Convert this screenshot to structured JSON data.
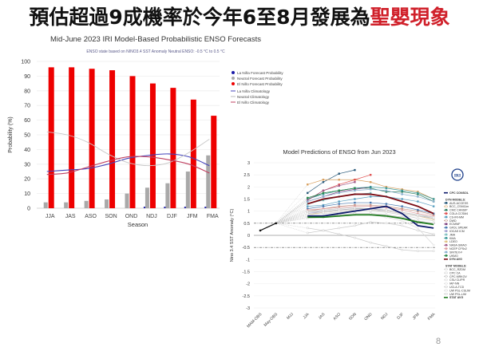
{
  "slide": {
    "title_main": "預估超過9成機率於今年6至8月發展為",
    "title_highlight": "聖嬰現象",
    "highlight_color": "#d0202a",
    "page_number": "8"
  },
  "chart_data": [
    {
      "type": "bar",
      "title": "Mid-June 2023 IRI Model-Based Probabilistic ENSO Forecasts",
      "subtitle": "ENSO state based on NINO3.4 SST Anomaly Neutral ENSO: -0.5 °C to 0.5 °C",
      "xlabel": "Season",
      "ylabel": "Probability (%)",
      "ylim": [
        0,
        100
      ],
      "yticks": [
        0,
        10,
        20,
        30,
        40,
        50,
        60,
        70,
        80,
        90,
        100
      ],
      "categories": [
        "JJA",
        "JAS",
        "ASO",
        "SON",
        "OND",
        "NDJ",
        "DJF",
        "JFM",
        "FMA"
      ],
      "series": [
        {
          "name": "La Niña Forecast Probability",
          "kind": "bar",
          "color": "#1a1aa8",
          "values": [
            0,
            0,
            0,
            0,
            0,
            1,
            1,
            1,
            1
          ]
        },
        {
          "name": "Neutral Forecast Probability",
          "kind": "bar",
          "color": "#a9a9a9",
          "values": [
            4,
            4,
            5,
            6,
            10,
            14,
            17,
            25,
            36
          ]
        },
        {
          "name": "El Niño Forecast Probability",
          "kind": "bar",
          "color": "#ee0000",
          "values": [
            96,
            96,
            95,
            94,
            90,
            85,
            82,
            74,
            63
          ]
        },
        {
          "name": "La Niña Climatology",
          "kind": "line",
          "color": "#4444bb",
          "values": [
            25,
            26,
            27,
            30,
            34,
            36,
            37,
            35,
            29
          ]
        },
        {
          "name": "Neutral Climatology",
          "kind": "line",
          "color": "#c8c8c8",
          "values": [
            52,
            50,
            45,
            37,
            31,
            29,
            31,
            38,
            47
          ]
        },
        {
          "name": "El Niño Climatology",
          "kind": "line",
          "color": "#c04060",
          "values": [
            23,
            24,
            28,
            32,
            35,
            35,
            33,
            30,
            24
          ]
        }
      ],
      "legend": {
        "position": "right"
      },
      "grid": true
    },
    {
      "type": "line",
      "title": "Model Predictions of ENSO from Jun 2023",
      "xlabel": "",
      "ylabel": "Nino 3.4 SST Anomaly (°C)",
      "ylim": [
        -3,
        3
      ],
      "yticks": [
        -3,
        -2.5,
        -2,
        -1.5,
        -1,
        -0.5,
        0,
        0.5,
        1,
        1.5,
        2,
        2.5,
        3
      ],
      "categories": [
        "MAM-OBS",
        "May-OBS",
        "MJJ",
        "JJA",
        "JAS",
        "ASO",
        "SON",
        "OND",
        "NDJ",
        "DJF",
        "JFM",
        "FMA"
      ],
      "thresholds": [
        0.5,
        -0.5
      ],
      "observed": {
        "name": "Observed",
        "values": [
          0.2,
          0.5
        ]
      },
      "series": [
        {
          "name": "CPC CONSOL",
          "color": "#0d1a6b",
          "values": [
            null,
            null,
            null,
            0.8,
            0.8,
            0.9,
            1.0,
            1.1,
            1.2,
            0.9,
            0.4,
            0.3
          ]
        },
        {
          "name": "DYN AVG",
          "color": "#7a0a12",
          "values": [
            null,
            null,
            null,
            1.3,
            1.5,
            1.6,
            1.7,
            1.7,
            1.6,
            1.4,
            1.2,
            0.9
          ]
        },
        {
          "name": "STAT AVG",
          "color": "#1e7a1e",
          "values": [
            null,
            null,
            null,
            0.75,
            0.75,
            0.8,
            0.85,
            0.85,
            0.8,
            0.7,
            0.55,
            0.45
          ]
        },
        {
          "name": "AUS-ACCESS",
          "color": "#2a5a7a",
          "values": [
            null,
            null,
            null,
            1.75,
            2.2,
            2.55,
            2.7,
            null,
            null,
            null,
            null,
            null
          ]
        },
        {
          "name": "BCC_CSM11m",
          "color": "#d8a060",
          "values": [
            null,
            null,
            null,
            2.1,
            2.3,
            2.3,
            2.3,
            2.2,
            2.0,
            1.9,
            1.8,
            1.5
          ]
        },
        {
          "name": "CMC CANSIP",
          "color": "#2a7a5a",
          "values": [
            null,
            null,
            null,
            1.5,
            1.75,
            1.85,
            1.95,
            1.95,
            1.8,
            1.8,
            1.7,
            1.4
          ]
        },
        {
          "name": "COLA CCSM4",
          "color": "#e05050",
          "values": [
            null,
            null,
            null,
            1.45,
            1.85,
            2.1,
            2.3,
            2.5,
            null,
            null,
            null,
            null
          ]
        },
        {
          "name": "CS-IRI-MM",
          "color": "#5aa0c0",
          "values": [
            null,
            null,
            null,
            1.2,
            1.25,
            1.4,
            1.5,
            1.6,
            1.6,
            1.5,
            1.4,
            1.2
          ]
        },
        {
          "name": "DWD",
          "color": "#c09080",
          "values": [
            null,
            null,
            null,
            1.0,
            1.1,
            1.2,
            1.25,
            1.25,
            1.2,
            1.1,
            1.0,
            0.85
          ]
        },
        {
          "name": "ECMWF",
          "color": "#7a3a7a",
          "values": [
            null,
            null,
            null,
            1.4,
            1.6,
            1.8,
            1.9,
            2.0,
            null,
            null,
            null,
            null
          ]
        },
        {
          "name": "GFDL SPEAR",
          "color": "#4a7ab0",
          "values": [
            null,
            null,
            null,
            1.1,
            1.2,
            1.3,
            1.35,
            1.35,
            1.3,
            1.2,
            1.05,
            0.9
          ]
        },
        {
          "name": "IOCAS ICM",
          "color": "#a0a0d0",
          "values": [
            null,
            null,
            null,
            0.9,
            1.0,
            1.05,
            1.1,
            1.1,
            1.0,
            0.9,
            0.8,
            0.7
          ]
        },
        {
          "name": "JMA",
          "color": "#80c0c0",
          "values": [
            null,
            null,
            null,
            1.3,
            1.45,
            1.6,
            1.7,
            1.75,
            null,
            null,
            null,
            null
          ]
        },
        {
          "name": "KMA",
          "color": "#3a9a9a",
          "values": [
            null,
            null,
            null,
            1.5,
            1.7,
            1.85,
            1.95,
            2.0,
            1.95,
            1.85,
            1.75,
            1.5
          ]
        },
        {
          "name": "LDEO",
          "color": "#e0c080",
          "values": [
            null,
            null,
            null,
            0.85,
            0.95,
            1.0,
            1.05,
            1.05,
            1.0,
            0.9,
            0.8,
            0.65
          ]
        },
        {
          "name": "NASA GMAO",
          "color": "#a05a8a",
          "values": [
            null,
            null,
            null,
            1.45,
            1.85,
            2.05,
            2.2,
            null,
            null,
            null,
            null,
            null
          ]
        },
        {
          "name": "NCEP CFSv2",
          "color": "#e0a0a0",
          "values": [
            null,
            null,
            null,
            1.05,
            1.1,
            1.15,
            1.2,
            1.2,
            1.15,
            1.05,
            0.9,
            0.8
          ]
        },
        {
          "name": "SINTEX-F",
          "color": "#8ab0d0",
          "values": [
            null,
            null,
            null,
            1.4,
            1.6,
            1.75,
            1.85,
            1.9,
            1.85,
            1.7,
            1.6,
            1.4
          ]
        },
        {
          "name": "UKMO",
          "color": "#2e8a4e",
          "values": [
            null,
            null,
            null,
            1.55,
            1.75,
            1.85,
            1.95,
            null,
            null,
            null,
            null,
            null
          ]
        },
        {
          "name": "BCC_RZDM",
          "color": "#c8c8c8",
          "values": [
            null,
            null,
            null,
            0.3,
            0.2,
            0.05,
            -0.1,
            -0.3,
            -0.45,
            -0.6,
            -0.65,
            -0.65
          ]
        },
        {
          "name": "CPC CA",
          "color": "#c8c8c8",
          "values": [
            null,
            null,
            null,
            0.1,
            0.2,
            0.3,
            0.4,
            0.55,
            0.5,
            0.4,
            0.2,
            0.05
          ]
        },
        {
          "name": "CPC MRKOV",
          "color": "#b8b8b8",
          "values": [
            null,
            null,
            null,
            0.95,
            1.0,
            1.05,
            1.1,
            1.1,
            1.05,
            0.95,
            0.85,
            0.7
          ]
        },
        {
          "name": "CSU CLIPR",
          "color": "#d0d0d0",
          "values": [
            null,
            null,
            null,
            0.85,
            0.9,
            0.95,
            1.0,
            1.0,
            0.95,
            0.85,
            0.7,
            0.6
          ]
        },
        {
          "name": "IAP-NN",
          "color": "#d8d8d8",
          "values": [
            null,
            null,
            null,
            0.7,
            0.75,
            0.8,
            0.85,
            0.85,
            0.75,
            0.6,
            0.3,
            -0.4
          ]
        },
        {
          "name": "UCLA-TCD",
          "color": "#c0c0c0",
          "values": [
            null,
            null,
            null,
            0.75,
            0.8,
            0.85,
            0.9,
            0.9,
            0.85,
            0.75,
            0.6,
            0.5
          ]
        },
        {
          "name": "UW PSL-CSLIM",
          "color": "#d0d0d0",
          "values": [
            null,
            null,
            null,
            0.9,
            0.95,
            1.0,
            1.05,
            1.05,
            1.0,
            0.9,
            0.8,
            0.7
          ]
        },
        {
          "name": "UW PSL-LIM",
          "color": "#c8c8c8",
          "values": [
            null,
            null,
            null,
            1.0,
            1.05,
            1.1,
            1.15,
            1.1,
            1.05,
            0.95,
            0.85,
            0.75
          ]
        }
      ],
      "legend": {
        "position": "right",
        "items": [
          "CPC CONSOL",
          "DYN MODELS:",
          "AUS-ACCESS",
          "BCC_CSM11m",
          "CMC CANSIP",
          "COLA CCSM4",
          "CS-IRI-MM",
          "DWD",
          "ECMWF",
          "GFDL SPEAR",
          "IOCAS ICM",
          "JMA",
          "KMA",
          "LDEO",
          "NASA GMAO",
          "NCEP CFSv2",
          "SINTEX-F",
          "UKMO",
          "DYN AVG",
          "STAT MODELS:",
          "BCC_RZDM",
          "CPC CA",
          "CPC MRKOV",
          "CSU CLIPR",
          "IAP-NN",
          "UCLA-TCD",
          "UW PSL-CSLIM",
          "UW PSL-LIM",
          "STAT AVG"
        ]
      },
      "logo": "IRI",
      "grid": true
    }
  ]
}
